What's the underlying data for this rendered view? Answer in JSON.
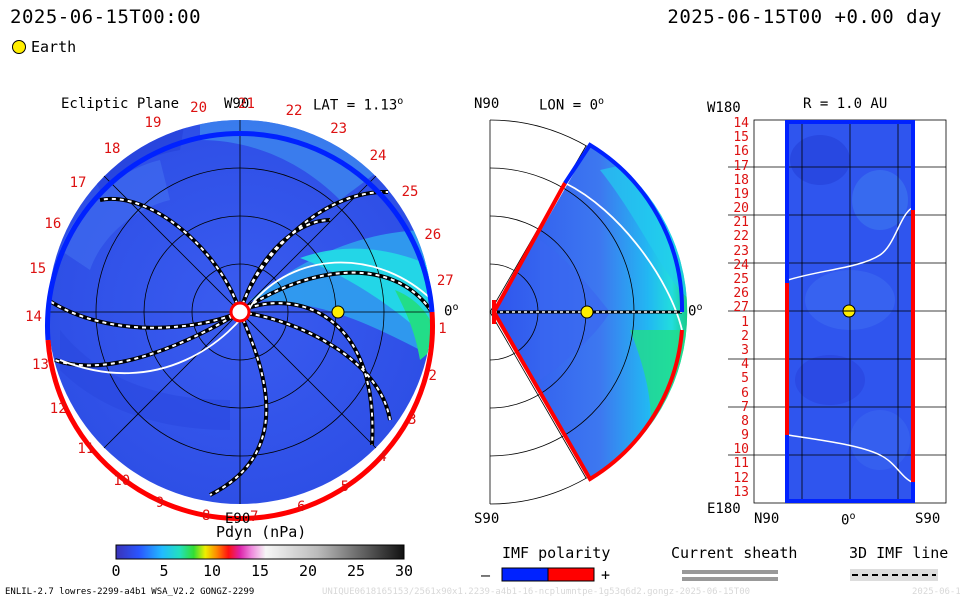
{
  "header": {
    "left_datetime": "2025-06-15T00:00",
    "right_datetime": "2025-06-15T00 +0.00 day"
  },
  "legend": {
    "earth_label": "Earth",
    "earth_color": "#ffee00"
  },
  "ecliptic": {
    "title": "Ecliptic Plane",
    "top_label": "W90",
    "lat_label": "LAT = 1.13",
    "lat_sup": "o",
    "bottom_label": "E90",
    "right_label": "0",
    "right_sup": "o",
    "carrington_ticks": [
      "1",
      "2",
      "3",
      "4",
      "5",
      "6",
      "7",
      "8",
      "9",
      "10",
      "11",
      "12",
      "13",
      "14",
      "15",
      "16",
      "17",
      "18",
      "19",
      "20",
      "21",
      "22",
      "23",
      "24",
      "25",
      "26",
      "27"
    ]
  },
  "meridional": {
    "top_label": "N90",
    "lon_label": "LON = 0",
    "lon_sup": "o",
    "bottom_label": "S90",
    "right_label": "0",
    "right_sup": "o"
  },
  "radial": {
    "top_left_label": "W180",
    "title": "R = 1.0 AU",
    "bottom_left_label": "E180",
    "bottom_labels": [
      "N90",
      "0",
      "S90"
    ],
    "bottom_center_sup": "o",
    "row_ticks": [
      "14",
      "15",
      "16",
      "17",
      "18",
      "19",
      "20",
      "21",
      "22",
      "23",
      "24",
      "25",
      "26",
      "27",
      "1",
      "2",
      "3",
      "4",
      "5",
      "6",
      "7",
      "8",
      "9",
      "10",
      "11",
      "12",
      "13"
    ]
  },
  "colorbar": {
    "title": "Pdyn (nPa)",
    "ticks": [
      "0",
      "5",
      "10",
      "15",
      "20",
      "25",
      "30"
    ],
    "range": [
      0,
      30
    ]
  },
  "imf_polarity": {
    "title": "IMF polarity",
    "minus": "–",
    "plus": "+",
    "neg_color": "#0022ff",
    "pos_color": "#ff0000"
  },
  "current_sheath": {
    "title": "Current sheath"
  },
  "imf_line": {
    "title": "3D IMF line"
  },
  "footer": {
    "model_info": "ENLIL-2.7 lowres-2299-a4b1 WSA_V2.2 GONGZ-2299",
    "run_id": "UNIQUE0618165153/2561x90x1.2239-a4b1-16-ncplumntpe-1g53q6d2.gongz-2025-06-15T00",
    "run_date": "2025-06-1"
  },
  "colors": {
    "pos_polarity": "#ff0000",
    "neg_polarity": "#0022ff",
    "bg_plasma": "#2f55ee",
    "fast_wind": "#22ddee",
    "tick_red": "#dd1111"
  }
}
